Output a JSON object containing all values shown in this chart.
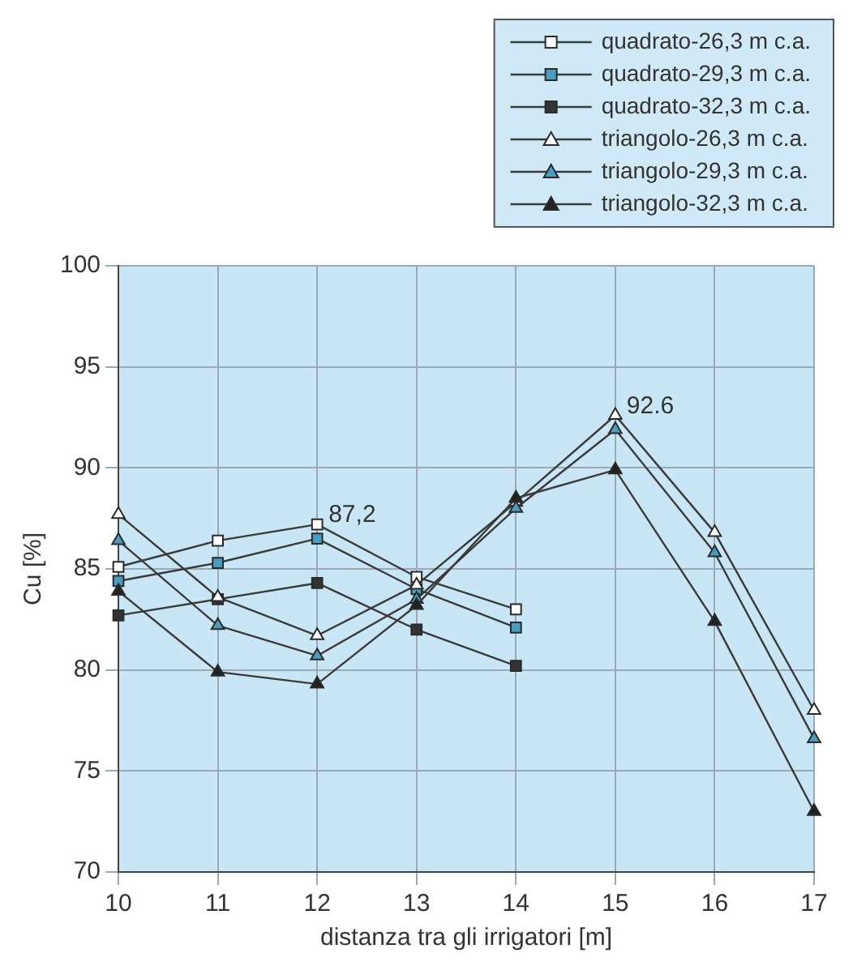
{
  "chart_data": {
    "type": "line",
    "xlabel": "distanza tra gli irrigatori [m]",
    "ylabel": "Cu [%]",
    "x": [
      10,
      11,
      12,
      13,
      14,
      15,
      16,
      17
    ],
    "xlim": [
      10,
      17
    ],
    "xticks": [
      10,
      11,
      12,
      13,
      14,
      15,
      16,
      17
    ],
    "ylim": [
      70,
      100
    ],
    "yticks": [
      70,
      75,
      80,
      85,
      90,
      95,
      100
    ],
    "grid": true,
    "legend": "top right",
    "line_style": "solid",
    "series": [
      {
        "name": "quadrato-26,3 m c.a.",
        "color": "#ffffff",
        "marker": "square",
        "values": [
          85.1,
          86.4,
          87.2,
          84.6,
          83.0,
          null,
          null,
          null
        ]
      },
      {
        "name": "quadrato-29,3 m c.a.",
        "color": "#4a9cc0",
        "marker": "square",
        "values": [
          84.4,
          85.3,
          86.5,
          84.0,
          82.1,
          null,
          null,
          null
        ]
      },
      {
        "name": "quadrato-32,3 m c.a.",
        "color": "#333333",
        "marker": "square",
        "values": [
          82.7,
          83.5,
          84.3,
          82.0,
          80.2,
          null,
          null,
          null
        ]
      },
      {
        "name": "triangolo-26,3 m c.a.",
        "color": "#ffffff",
        "marker": "triangle",
        "values": [
          87.7,
          83.6,
          81.7,
          84.2,
          88.3,
          92.6,
          86.8,
          78.0
        ]
      },
      {
        "name": "triangolo-29,3 m c.a.",
        "color": "#4a9cc0",
        "marker": "triangle",
        "values": [
          86.4,
          82.2,
          80.7,
          83.5,
          88.0,
          91.9,
          85.8,
          76.6
        ]
      },
      {
        "name": "triangolo-32,3 m c.a.",
        "color": "#222222",
        "marker": "triangle",
        "values": [
          83.9,
          79.9,
          79.3,
          83.2,
          88.5,
          89.9,
          82.4,
          73.0
        ]
      }
    ],
    "annotations": [
      {
        "text": "87,2",
        "x": 12,
        "y": 87.2
      },
      {
        "text": "92.6",
        "x": 15,
        "y": 92.6
      }
    ]
  }
}
